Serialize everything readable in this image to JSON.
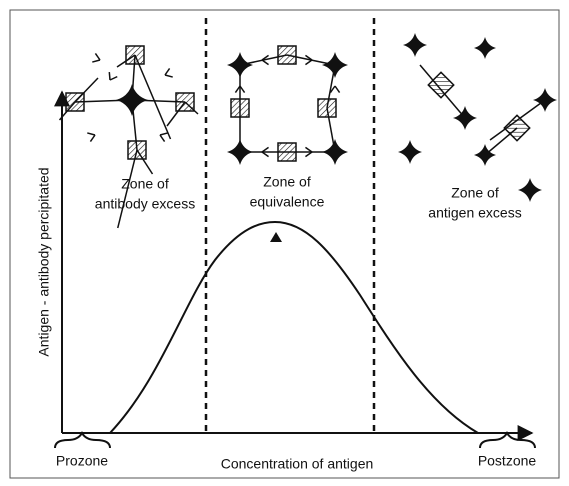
{
  "zones": [
    {
      "lines": [
        "Zone of",
        "antibody excess"
      ]
    },
    {
      "lines": [
        "Zone of",
        "equivalence"
      ]
    },
    {
      "lines": [
        "Zone of",
        "antigen excess"
      ]
    }
  ],
  "y_axis_label": "Antigen - antibody percipitated",
  "x_axis_label": "Concentration of antigen",
  "prozone": "Prozone",
  "postzone": "Postzone"
}
